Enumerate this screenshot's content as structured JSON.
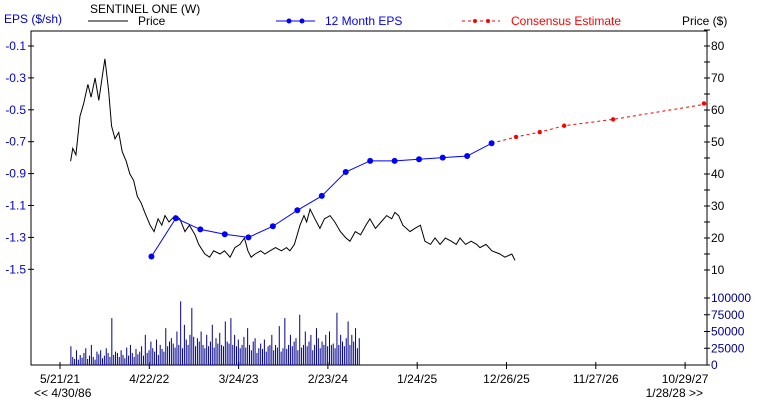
{
  "chart_data": {
    "type": "line",
    "title": "SENTINEL ONE (W)",
    "left_axis_label": "EPS ($/sh)",
    "right_axis_label": "Price ($)",
    "legend": {
      "price": "Price",
      "eps": "12 Month EPS",
      "consensus": "Consensus Estimate"
    },
    "eps_ticks": [
      "-0.1",
      "-0.3",
      "-0.5",
      "-0.7",
      "-0.9",
      "-1.1",
      "-1.3",
      "-1.5"
    ],
    "price_ticks": [
      "80",
      "70",
      "60",
      "50",
      "40",
      "30",
      "20",
      "10"
    ],
    "volume_ticks": [
      "100000",
      "75000",
      "50000",
      "25000",
      "0"
    ],
    "x_ticks": [
      "5/21/21",
      "4/22/22",
      "3/24/23",
      "2/23/24",
      "1/24/25",
      "12/26/25",
      "11/27/26",
      "10/29/27"
    ],
    "x_tick_dates": [
      "2021-05-21",
      "2022-04-22",
      "2023-03-24",
      "2024-02-23",
      "2025-01-24",
      "2025-12-26",
      "2026-11-27",
      "2027-10-29"
    ],
    "range_start": "<< 4/30/86",
    "range_end": "1/28/28 >>",
    "eps_range": [
      -1.5,
      -0.1
    ],
    "price_range": [
      10,
      80
    ],
    "colors": {
      "eps": "#0000ff",
      "consensus": "#ff0000",
      "price": "#000000",
      "volume": "#00008b",
      "axis_eps": "#0000cc",
      "axis_price": "#000000"
    },
    "eps": [
      [
        "2022-04-30",
        -1.42
      ],
      [
        "2022-07-31",
        -1.18
      ],
      [
        "2022-10-31",
        -1.25
      ],
      [
        "2023-01-31",
        -1.28
      ],
      [
        "2023-04-30",
        -1.3
      ],
      [
        "2023-07-31",
        -1.23
      ],
      [
        "2023-10-31",
        -1.13
      ],
      [
        "2024-01-31",
        -1.04
      ],
      [
        "2024-04-30",
        -0.89
      ],
      [
        "2024-07-31",
        -0.82
      ],
      [
        "2024-10-31",
        -0.82
      ],
      [
        "2025-01-31",
        -0.81
      ],
      [
        "2025-04-30",
        -0.8
      ],
      [
        "2025-07-31",
        -0.79
      ],
      [
        "2025-10-31",
        -0.71
      ]
    ],
    "consensus": [
      [
        "2026-01-31",
        -0.67
      ],
      [
        "2026-04-30",
        -0.64
      ],
      [
        "2026-07-31",
        -0.6
      ],
      [
        "2027-01-31",
        -0.56
      ],
      [
        "2028-01-31",
        -0.46
      ]
    ],
    "price": [
      [
        "2021-06-30",
        44
      ],
      [
        "2021-07-08",
        48
      ],
      [
        "2021-07-20",
        46
      ],
      [
        "2021-08-04",
        58
      ],
      [
        "2021-08-18",
        62
      ],
      [
        "2021-09-03",
        68
      ],
      [
        "2021-09-15",
        64
      ],
      [
        "2021-09-30",
        70
      ],
      [
        "2021-10-14",
        63
      ],
      [
        "2021-10-28",
        71
      ],
      [
        "2021-11-06",
        76
      ],
      [
        "2021-11-20",
        66
      ],
      [
        "2021-12-01",
        55
      ],
      [
        "2021-12-14",
        51
      ],
      [
        "2021-12-28",
        53
      ],
      [
        "2022-01-10",
        47
      ],
      [
        "2022-01-25",
        44
      ],
      [
        "2022-02-08",
        40
      ],
      [
        "2022-02-22",
        38
      ],
      [
        "2022-03-08",
        33
      ],
      [
        "2022-03-22",
        31
      ],
      [
        "2022-04-05",
        28
      ],
      [
        "2022-04-25",
        24
      ],
      [
        "2022-05-10",
        22
      ],
      [
        "2022-05-25",
        26
      ],
      [
        "2022-06-08",
        24
      ],
      [
        "2022-06-20",
        27
      ],
      [
        "2022-07-05",
        25
      ],
      [
        "2022-07-28",
        27
      ],
      [
        "2022-08-15",
        26
      ],
      [
        "2022-09-03",
        22
      ],
      [
        "2022-09-20",
        24
      ],
      [
        "2022-10-11",
        21
      ],
      [
        "2022-10-25",
        18
      ],
      [
        "2022-11-17",
        15
      ],
      [
        "2022-12-05",
        14
      ],
      [
        "2022-12-20",
        16
      ],
      [
        "2023-01-13",
        15
      ],
      [
        "2023-01-30",
        16
      ],
      [
        "2023-02-20",
        14
      ],
      [
        "2023-03-10",
        17
      ],
      [
        "2023-03-29",
        18
      ],
      [
        "2023-04-15",
        20
      ],
      [
        "2023-04-28",
        16
      ],
      [
        "2023-05-10",
        14
      ],
      [
        "2023-05-25",
        15
      ],
      [
        "2023-06-15",
        16
      ],
      [
        "2023-07-01",
        15
      ],
      [
        "2023-07-20",
        16
      ],
      [
        "2023-08-10",
        17
      ],
      [
        "2023-09-01",
        16
      ],
      [
        "2023-09-20",
        17
      ],
      [
        "2023-10-03",
        16
      ],
      [
        "2023-10-20",
        18
      ],
      [
        "2023-11-10",
        24
      ],
      [
        "2023-11-25",
        27
      ],
      [
        "2023-12-05",
        25
      ],
      [
        "2023-12-18",
        29
      ],
      [
        "2024-01-05",
        26
      ],
      [
        "2024-01-24",
        23
      ],
      [
        "2024-02-10",
        26
      ],
      [
        "2024-03-02",
        27
      ],
      [
        "2024-03-20",
        25
      ],
      [
        "2024-04-10",
        22
      ],
      [
        "2024-05-01",
        20
      ],
      [
        "2024-05-16",
        19
      ],
      [
        "2024-06-05",
        22
      ],
      [
        "2024-06-25",
        21
      ],
      [
        "2024-07-15",
        24
      ],
      [
        "2024-07-30",
        26
      ],
      [
        "2024-08-20",
        23
      ],
      [
        "2024-09-10",
        25
      ],
      [
        "2024-10-01",
        27
      ],
      [
        "2024-10-20",
        26
      ],
      [
        "2024-11-01",
        28
      ],
      [
        "2024-11-15",
        27
      ],
      [
        "2024-12-01",
        24
      ],
      [
        "2024-12-28",
        22
      ],
      [
        "2025-01-15",
        23
      ],
      [
        "2025-02-05",
        24
      ],
      [
        "2025-02-22",
        19
      ],
      [
        "2025-03-15",
        18
      ],
      [
        "2025-04-01",
        20
      ],
      [
        "2025-04-20",
        18
      ],
      [
        "2025-05-10",
        20
      ],
      [
        "2025-06-01",
        19
      ],
      [
        "2025-06-20",
        18
      ],
      [
        "2025-07-04",
        20
      ],
      [
        "2025-07-25",
        18
      ],
      [
        "2025-08-15",
        19
      ],
      [
        "2025-09-05",
        18
      ],
      [
        "2025-09-17",
        17
      ],
      [
        "2025-10-10",
        18
      ],
      [
        "2025-11-01",
        16
      ],
      [
        "2025-12-01",
        15
      ],
      [
        "2025-12-20",
        14
      ],
      [
        "2026-01-15",
        15
      ],
      [
        "2026-01-27",
        13
      ]
    ],
    "volume_start": "2021-07-01",
    "volume_interval_days": 7,
    "volume": [
      28000,
      12000,
      9000,
      22000,
      8000,
      15000,
      11000,
      18000,
      25000,
      9000,
      14000,
      30000,
      12000,
      8000,
      20000,
      16000,
      22000,
      10000,
      14000,
      25000,
      18000,
      12000,
      70000,
      15000,
      20000,
      18000,
      12000,
      22000,
      15000,
      10000,
      26000,
      14000,
      30000,
      18000,
      12000,
      24000,
      16000,
      20000,
      28000,
      14000,
      45000,
      18000,
      22000,
      35000,
      25000,
      20000,
      38000,
      15000,
      30000,
      24000,
      20000,
      55000,
      28000,
      35000,
      40000,
      32000,
      26000,
      50000,
      30000,
      95000,
      25000,
      60000,
      38000,
      30000,
      45000,
      85000,
      42000,
      28000,
      40000,
      35000,
      50000,
      30000,
      25000,
      45000,
      28000,
      35000,
      60000,
      26000,
      40000,
      32000,
      48000,
      30000,
      28000,
      65000,
      35000,
      32000,
      70000,
      30000,
      45000,
      28000,
      38000,
      25000,
      30000,
      42000,
      26000,
      55000,
      30000,
      22000,
      35000,
      40000,
      18000,
      25000,
      32000,
      24000,
      38000,
      20000,
      28000,
      30000,
      45000,
      22000,
      30000,
      26000,
      58000,
      20000,
      25000,
      70000,
      24000,
      30000,
      45000,
      28000,
      35000,
      40000,
      22000,
      75000,
      26000,
      30000,
      50000,
      28000,
      35000,
      45000,
      22000,
      30000,
      55000,
      40000,
      25000,
      35000,
      30000,
      45000,
      28000,
      50000,
      30000,
      32000,
      25000,
      78000,
      30000,
      45000,
      35000,
      28000,
      40000,
      65000,
      30000,
      45000,
      35000,
      55000,
      25000,
      40000
    ]
  }
}
